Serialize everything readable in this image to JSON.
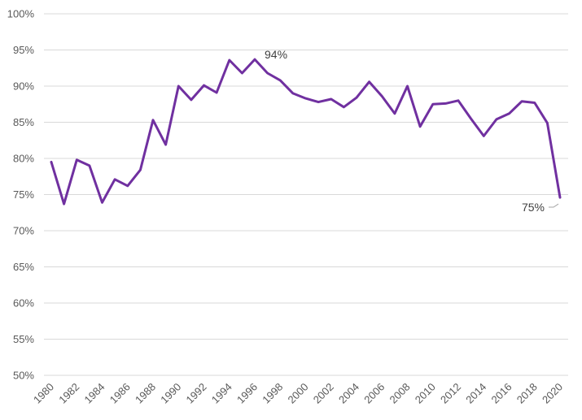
{
  "chart_data": {
    "type": "line",
    "title": "",
    "xlabel": "",
    "ylabel": "",
    "ylim": [
      50,
      100
    ],
    "y_ticks": [
      "50%",
      "55%",
      "60%",
      "65%",
      "70%",
      "75%",
      "80%",
      "85%",
      "90%",
      "95%",
      "100%"
    ],
    "y_tick_values": [
      50,
      55,
      60,
      65,
      70,
      75,
      80,
      85,
      90,
      95,
      100
    ],
    "x_tick_labels": [
      "1980",
      "1982",
      "1984",
      "1986",
      "1988",
      "1990",
      "1992",
      "1994",
      "1996",
      "1998",
      "2000",
      "2002",
      "2004",
      "2006",
      "2008",
      "2010",
      "2012",
      "2014",
      "2016",
      "2018",
      "2020"
    ],
    "grid": true,
    "legend": "none",
    "line_color": "#7030a0",
    "x": [
      1980,
      1981,
      1982,
      1983,
      1984,
      1985,
      1986,
      1987,
      1988,
      1989,
      1990,
      1991,
      1992,
      1993,
      1994,
      1995,
      1996,
      1997,
      1998,
      1999,
      2000,
      2001,
      2002,
      2003,
      2004,
      2005,
      2006,
      2007,
      2008,
      2009,
      2010,
      2011,
      2012,
      2013,
      2014,
      2015,
      2016,
      2017,
      2018,
      2019,
      2020
    ],
    "series": [
      {
        "values": [
          79.5,
          73.7,
          79.8,
          79.0,
          73.9,
          77.1,
          76.2,
          78.4,
          85.3,
          81.9,
          90.0,
          88.1,
          90.1,
          89.1,
          93.6,
          91.8,
          93.7,
          91.8,
          90.8,
          89.0,
          88.3,
          87.8,
          88.2,
          87.1,
          88.4,
          90.6,
          88.6,
          86.2,
          90.0,
          84.4,
          87.5,
          87.6,
          88.0,
          85.5,
          83.1,
          85.4,
          86.2,
          87.9,
          87.7,
          84.9,
          74.6
        ]
      }
    ],
    "annotations": [
      {
        "text": "94%",
        "x": 1996,
        "y": 93.7
      },
      {
        "text": "75%",
        "x": 2020,
        "y": 74.6
      }
    ]
  }
}
